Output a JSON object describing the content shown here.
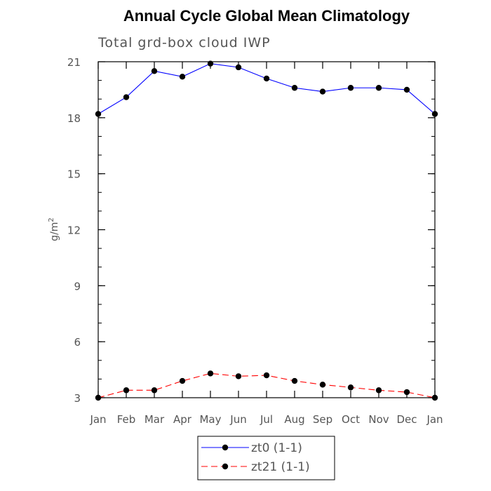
{
  "chart_data": {
    "type": "line",
    "title": "Annual Cycle Global Mean Climatology",
    "subtitle": "Total grd-box cloud IWP",
    "xlabel": "",
    "ylabel_base": "g/m",
    "ylabel_sup": "2",
    "categories": [
      "Jan",
      "Feb",
      "Mar",
      "Apr",
      "May",
      "Jun",
      "Jul",
      "Aug",
      "Sep",
      "Oct",
      "Nov",
      "Dec",
      "Jan"
    ],
    "yticks": [
      3,
      6,
      9,
      12,
      15,
      18,
      21
    ],
    "ylim": [
      3,
      21
    ],
    "series": [
      {
        "name": "zt0 (1-1)",
        "color": "#0000ff",
        "dash": "solid",
        "values": [
          18.2,
          19.1,
          20.5,
          20.2,
          20.9,
          20.7,
          20.1,
          19.6,
          19.4,
          19.6,
          19.6,
          19.5,
          18.2
        ]
      },
      {
        "name": "zt21 (1-1)",
        "color": "#ff0000",
        "dash": "dashed",
        "values": [
          3.0,
          3.4,
          3.4,
          3.9,
          4.3,
          4.15,
          4.2,
          3.9,
          3.7,
          3.55,
          3.4,
          3.3,
          3.0
        ]
      }
    ],
    "legend": "bottom-center"
  }
}
